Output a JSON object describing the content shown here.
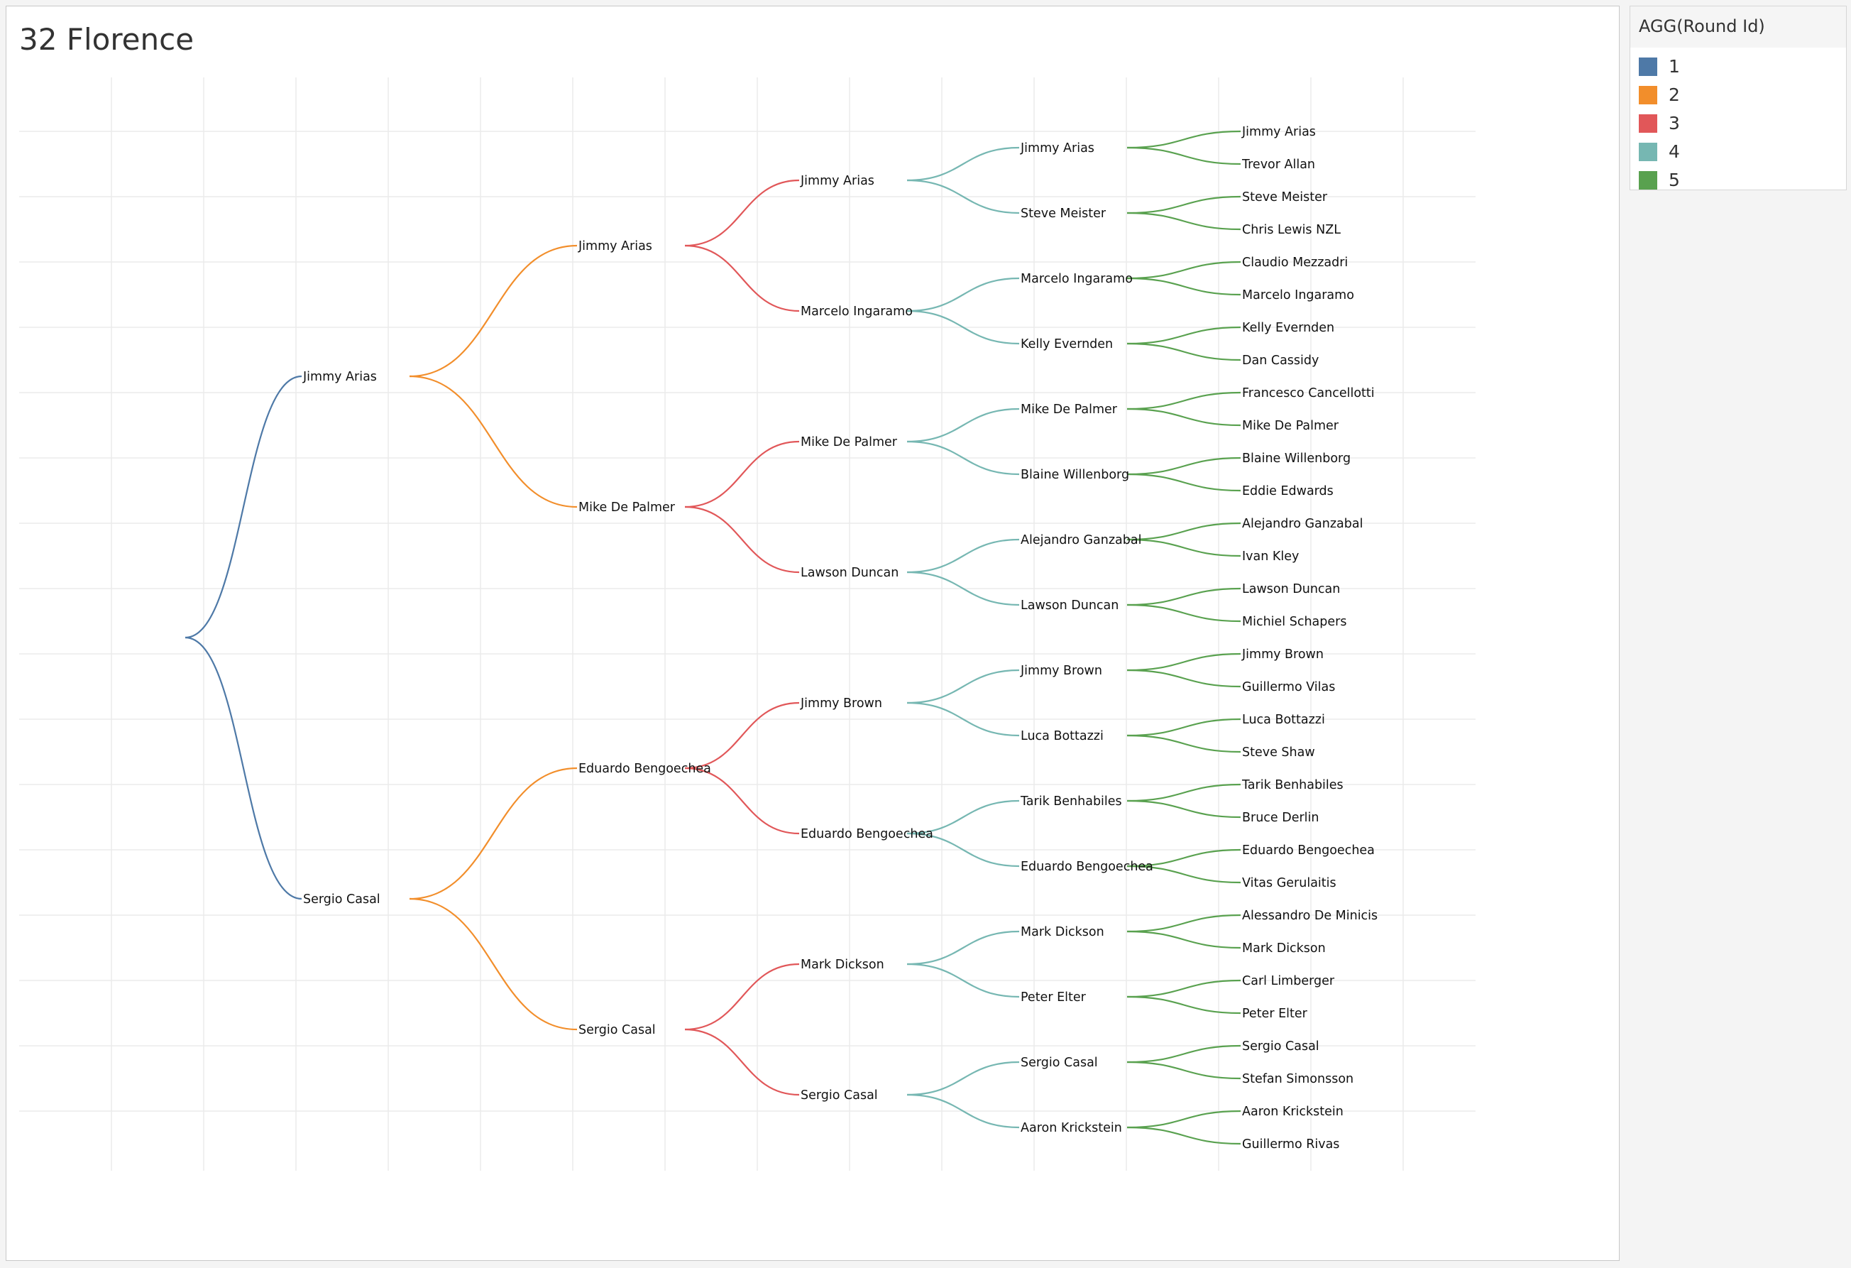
{
  "chart_data": {
    "type": "tree",
    "title": "32 Florence",
    "legend": {
      "title": "AGG(Round Id)",
      "placement": "right",
      "items": [
        {
          "label": "1",
          "color": "#4e79a7"
        },
        {
          "label": "2",
          "color": "#f28e2b"
        },
        {
          "label": "3",
          "color": "#e15759"
        },
        {
          "label": "4",
          "color": "#76b7b2"
        },
        {
          "label": "5",
          "color": "#59a14f"
        }
      ]
    },
    "grid": true,
    "rounds": [
      [
        "Jimmy Arias",
        "Sergio Casal"
      ],
      [
        "Jimmy Arias",
        "Mike De Palmer",
        "Eduardo Bengoechea",
        "Sergio Casal"
      ],
      [
        "Jimmy Arias",
        "Marcelo Ingaramo",
        "Mike De Palmer",
        "Lawson Duncan",
        "Jimmy Brown",
        "Eduardo Bengoechea",
        "Mark Dickson",
        "Sergio Casal"
      ],
      [
        "Jimmy Arias",
        "Steve Meister",
        "Marcelo Ingaramo",
        "Kelly Evernden",
        "Mike De Palmer",
        "Blaine Willenborg",
        "Alejandro Ganzabal",
        "Lawson Duncan",
        "Jimmy Brown",
        "Luca Bottazzi",
        "Tarik Benhabiles",
        "Eduardo Bengoechea",
        "Mark Dickson",
        "Peter Elter",
        "Sergio Casal",
        "Aaron Krickstein"
      ],
      [
        "Jimmy Arias",
        "Trevor Allan",
        "Steve Meister",
        "Chris Lewis NZL",
        "Claudio Mezzadri",
        "Marcelo Ingaramo",
        "Kelly Evernden",
        "Dan Cassidy",
        "Francesco Cancellotti",
        "Mike De Palmer",
        "Blaine Willenborg",
        "Eddie Edwards",
        "Alejandro Ganzabal",
        "Ivan Kley",
        "Lawson Duncan",
        "Michiel Schapers",
        "Jimmy Brown",
        "Guillermo Vilas",
        "Luca Bottazzi",
        "Steve Shaw",
        "Tarik Benhabiles",
        "Bruce Derlin",
        "Eduardo Bengoechea",
        "Vitas Gerulaitis",
        "Alessandro De Minicis",
        "Mark Dickson",
        "Carl Limberger",
        "Peter Elter",
        "Sergio Casal",
        "Stefan Simonsson",
        "Aaron Krickstein",
        "Guillermo Rivas"
      ]
    ]
  }
}
